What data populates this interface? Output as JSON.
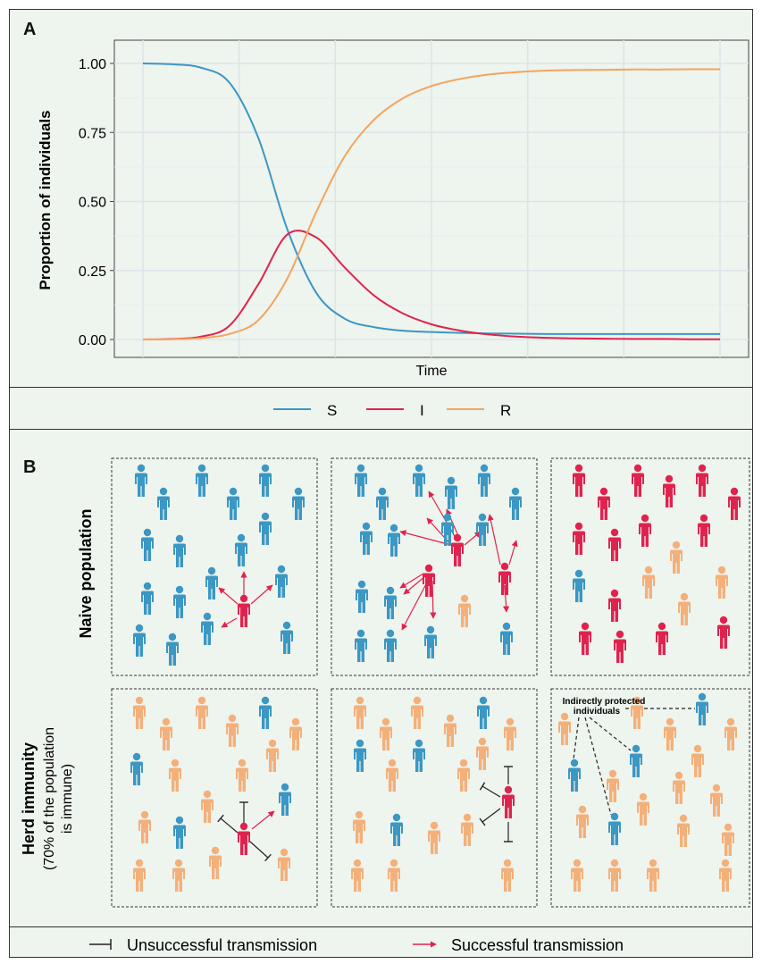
{
  "panel_a": {
    "letter": "A",
    "chart_data": {
      "type": "line",
      "xlabel": "Time",
      "ylabel": "Proportion of individuals",
      "ylim": [
        0,
        1
      ],
      "y_ticks": [
        "0.00",
        "0.25",
        "0.50",
        "0.75",
        "1.00"
      ],
      "x_tick_labels": [],
      "grid": true,
      "legend_position": "bottom",
      "x": [
        0,
        0.05,
        0.1,
        0.15,
        0.2,
        0.25,
        0.3,
        0.35,
        0.4,
        0.45,
        0.5,
        0.55,
        0.6,
        0.65,
        0.7,
        0.75,
        0.8,
        0.85,
        0.9,
        0.95,
        1.0
      ],
      "series": [
        {
          "name": "S",
          "color": "#3b97c3",
          "values": [
            1.0,
            0.997,
            0.985,
            0.93,
            0.73,
            0.4,
            0.17,
            0.075,
            0.045,
            0.032,
            0.027,
            0.024,
            0.022,
            0.021,
            0.02,
            0.02,
            0.02,
            0.02,
            0.02,
            0.02,
            0.02
          ]
        },
        {
          "name": "I",
          "color": "#e0234e",
          "values": [
            0.0,
            0.002,
            0.01,
            0.05,
            0.2,
            0.38,
            0.37,
            0.26,
            0.16,
            0.095,
            0.055,
            0.032,
            0.018,
            0.01,
            0.006,
            0.004,
            0.003,
            0.002,
            0.002,
            0.001,
            0.001
          ]
        },
        {
          "name": "R",
          "color": "#f4a45c",
          "values": [
            0.0,
            0.001,
            0.005,
            0.02,
            0.07,
            0.22,
            0.46,
            0.665,
            0.795,
            0.873,
            0.918,
            0.944,
            0.96,
            0.969,
            0.974,
            0.976,
            0.977,
            0.978,
            0.978,
            0.979,
            0.979
          ]
        }
      ]
    }
  },
  "panel_b": {
    "letter": "B",
    "row_labels": {
      "naive": "Naive population",
      "herd_line1": "Herd immunity",
      "herd_line2": "(70% of the population",
      "herd_line3": "is immune)"
    },
    "annotation": "Indirectly protected individuals",
    "annotation_line1": "Indirectly protected",
    "annotation_line2": "individuals",
    "colors": {
      "susceptible": "#3b97c3",
      "infected": "#e0234e",
      "recovered": "#f4b07a"
    }
  },
  "bottom_legend": {
    "unsuccessful": "Unsuccessful transmission",
    "successful": "Successful transmission"
  }
}
